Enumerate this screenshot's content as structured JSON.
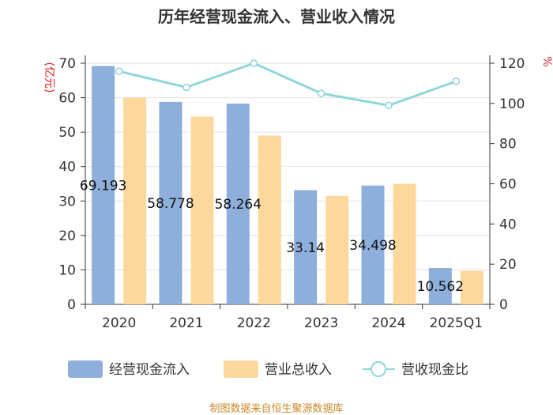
{
  "title": "历年经营现金流入、营业收入情况",
  "source": "制图数据来自恒生聚源数据库",
  "colors": {
    "cash_inflow": "#8eaedc",
    "revenue": "#fdd89c",
    "ratio": "#8fd6db",
    "unit_text": "#e02020",
    "source_text": "#c98a2b"
  },
  "chart_data": {
    "type": "bar",
    "categories": [
      "2020",
      "2021",
      "2022",
      "2023",
      "2024",
      "2025Q1"
    ],
    "series": [
      {
        "name": "经营现金流入",
        "axis": "left",
        "type": "bar",
        "values": [
          69.193,
          58.778,
          58.264,
          33.14,
          34.498,
          10.562
        ],
        "labels": [
          "69.193",
          "58.778",
          "58.264",
          "33.14",
          "34.498",
          "10.562"
        ]
      },
      {
        "name": "营业总收入",
        "axis": "left",
        "type": "bar",
        "values": [
          60.0,
          54.5,
          49.0,
          31.5,
          35.0,
          9.7
        ]
      },
      {
        "name": "营收现金比",
        "axis": "right",
        "type": "line",
        "values": [
          116,
          108,
          120,
          105,
          99,
          111
        ]
      }
    ],
    "y_left": {
      "unit": "(亿元)",
      "ylim": [
        0,
        70
      ],
      "ticks": [
        0,
        10,
        20,
        30,
        40,
        50,
        60,
        70
      ]
    },
    "y_right": {
      "unit": "%",
      "ylim": [
        0,
        120
      ],
      "ticks": [
        0,
        20,
        40,
        60,
        80,
        100,
        120
      ]
    },
    "grid": true,
    "legend": "bottom"
  }
}
